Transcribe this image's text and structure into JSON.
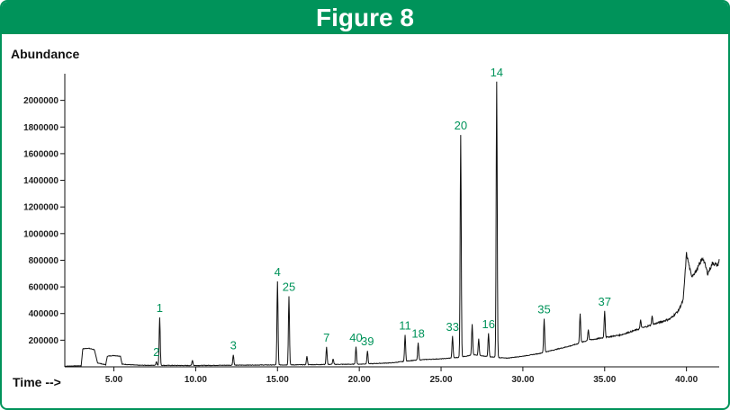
{
  "figure": {
    "title": "Figure 8"
  },
  "chart_data": {
    "type": "line",
    "ylabel": "Abundance",
    "xlabel": "Time -->",
    "xlim": [
      2.0,
      42.0
    ],
    "ylim": [
      0,
      2200000
    ],
    "x_ticks": [
      {
        "value": 5,
        "label": "5.00"
      },
      {
        "value": 10,
        "label": "10.00"
      },
      {
        "value": 15,
        "label": "15.00"
      },
      {
        "value": 20,
        "label": "20.00"
      },
      {
        "value": 25,
        "label": "25.00"
      },
      {
        "value": 30,
        "label": "30.00"
      },
      {
        "value": 35,
        "label": "35.00"
      },
      {
        "value": 40,
        "label": "40.00"
      }
    ],
    "y_ticks": [
      {
        "value": 200000,
        "label": "200000"
      },
      {
        "value": 400000,
        "label": "400000"
      },
      {
        "value": 600000,
        "label": "600000"
      },
      {
        "value": 800000,
        "label": "800000"
      },
      {
        "value": 1000000,
        "label": "1000000"
      },
      {
        "value": 1200000,
        "label": "1200000"
      },
      {
        "value": 1400000,
        "label": "1400000"
      },
      {
        "value": 1600000,
        "label": "1600000"
      },
      {
        "value": 1800000,
        "label": "1800000"
      },
      {
        "value": 2000000,
        "label": "2000000"
      }
    ],
    "baseline": [
      [
        2.0,
        5000
      ],
      [
        3.0,
        8000
      ],
      [
        3.1,
        135000
      ],
      [
        3.4,
        140000
      ],
      [
        3.8,
        130000
      ],
      [
        4.0,
        30000
      ],
      [
        4.5,
        15000
      ],
      [
        4.6,
        80000
      ],
      [
        5.0,
        85000
      ],
      [
        5.4,
        80000
      ],
      [
        5.5,
        20000
      ],
      [
        6.5,
        12000
      ],
      [
        9.7,
        10000
      ],
      [
        12.0,
        12000
      ],
      [
        14.0,
        14000
      ],
      [
        16.0,
        15000
      ],
      [
        18.0,
        18000
      ],
      [
        20.0,
        20000
      ],
      [
        21.0,
        25000
      ],
      [
        22.0,
        30000
      ],
      [
        23.0,
        45000
      ],
      [
        24.0,
        55000
      ],
      [
        25.0,
        60000
      ],
      [
        26.0,
        70000
      ],
      [
        27.0,
        90000
      ],
      [
        28.0,
        75000
      ],
      [
        29.0,
        65000
      ],
      [
        30.0,
        80000
      ],
      [
        31.0,
        100000
      ],
      [
        32.0,
        130000
      ],
      [
        33.0,
        160000
      ],
      [
        34.0,
        200000
      ],
      [
        35.0,
        220000
      ],
      [
        36.0,
        240000
      ],
      [
        37.0,
        280000
      ],
      [
        38.0,
        320000
      ],
      [
        39.0,
        360000
      ],
      [
        39.5,
        420000
      ],
      [
        39.8,
        500000
      ],
      [
        40.0,
        850000
      ],
      [
        40.3,
        680000
      ],
      [
        40.6,
        720000
      ],
      [
        41.0,
        820000
      ],
      [
        41.3,
        700000
      ],
      [
        41.6,
        780000
      ],
      [
        41.9,
        760000
      ],
      [
        42.0,
        800000
      ]
    ],
    "peaks": [
      {
        "label": "2",
        "x": 7.6,
        "y": 40000
      },
      {
        "label": "1",
        "x": 7.8,
        "y": 370000
      },
      {
        "label": "3",
        "x": 12.3,
        "y": 90000
      },
      {
        "label": "4",
        "x": 15.0,
        "y": 640000
      },
      {
        "label": "25",
        "x": 15.7,
        "y": 530000
      },
      {
        "label": "7",
        "x": 18.0,
        "y": 150000
      },
      {
        "label": "40",
        "x": 19.8,
        "y": 150000
      },
      {
        "label": "39",
        "x": 20.5,
        "y": 120000
      },
      {
        "label": "11",
        "x": 22.8,
        "y": 240000
      },
      {
        "label": "18",
        "x": 23.6,
        "y": 180000
      },
      {
        "label": "33",
        "x": 25.7,
        "y": 230000
      },
      {
        "label": "20",
        "x": 26.2,
        "y": 1740000
      },
      {
        "label": "16",
        "x": 27.9,
        "y": 250000
      },
      {
        "label": "14",
        "x": 28.4,
        "y": 2140000
      },
      {
        "label": "35",
        "x": 31.3,
        "y": 360000
      },
      {
        "label": "37",
        "x": 35.0,
        "y": 420000
      }
    ],
    "minor_peaks": [
      {
        "x": 9.8,
        "y": 50000
      },
      {
        "x": 16.8,
        "y": 80000
      },
      {
        "x": 18.4,
        "y": 60000
      },
      {
        "x": 26.9,
        "y": 320000
      },
      {
        "x": 27.3,
        "y": 210000
      },
      {
        "x": 33.5,
        "y": 400000
      },
      {
        "x": 34.0,
        "y": 280000
      },
      {
        "x": 37.2,
        "y": 350000
      },
      {
        "x": 37.9,
        "y": 380000
      }
    ]
  }
}
